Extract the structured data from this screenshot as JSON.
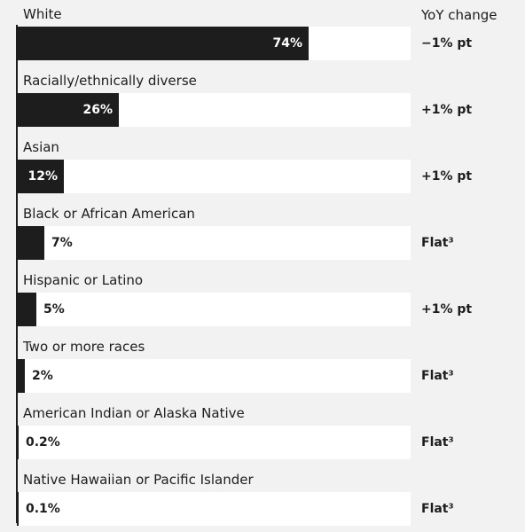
{
  "chart_data": {
    "type": "bar",
    "orientation": "horizontal",
    "title": "",
    "xlim": [
      0,
      100
    ],
    "grid": false,
    "legend": "none",
    "value_column_header": "YoY change",
    "categories": [
      "White",
      "Racially/ethnically diverse",
      "Asian",
      "Black or African American",
      "Hispanic or Latino",
      "Two or more races",
      "American Indian or Alaska Native",
      "Native Hawaiian or Pacific Islander"
    ],
    "values": [
      74,
      26,
      12,
      7,
      5,
      2,
      0.2,
      0.1
    ],
    "value_labels": [
      "74%",
      "26%",
      "12%",
      "7%",
      "5%",
      "2%",
      "0.2%",
      "0.1%"
    ],
    "yoy_change": [
      "−1% pt",
      "+1% pt",
      "+1% pt",
      "Flat³",
      "+1% pt",
      "Flat³",
      "Flat³",
      "Flat³"
    ]
  },
  "colors": {
    "bar": "#1d1d1d",
    "track": "#ffffff",
    "background": "#f2f2f2"
  }
}
